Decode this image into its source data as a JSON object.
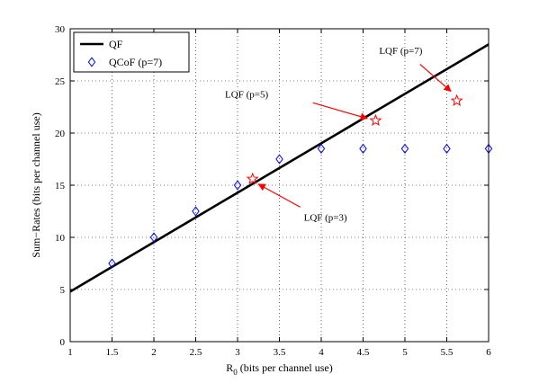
{
  "chart_data": {
    "type": "line",
    "title": "",
    "xlabel": "R",
    "xlabel_sub": "0",
    "xlabel_suffix": " (bits per channel use)",
    "ylabel": "Sum−Rates (bits per channel use)",
    "xlim": [
      1,
      6
    ],
    "ylim": [
      0,
      30
    ],
    "xticks": [
      1,
      1.5,
      2,
      2.5,
      3,
      3.5,
      4,
      4.5,
      5,
      5.5,
      6
    ],
    "xtick_labels": [
      "1",
      "1.5",
      "2",
      "2.5",
      "3",
      "3.5",
      "4",
      "4.5",
      "5",
      "5.5",
      "6"
    ],
    "yticks": [
      0,
      5,
      10,
      15,
      20,
      25,
      30
    ],
    "ytick_labels": [
      "0",
      "5",
      "10",
      "15",
      "20",
      "25",
      "30"
    ],
    "grid": true,
    "legend_position": "top-left",
    "series": [
      {
        "name": "QF",
        "style": "line",
        "color": "#000000",
        "x": [
          1,
          6
        ],
        "y": [
          4.8,
          28.5
        ]
      },
      {
        "name": "QCoF (p=7)",
        "style": "diamond-markers",
        "color": "#0000ff",
        "x": [
          1.5,
          2,
          2.5,
          3,
          3.5,
          4,
          4.5,
          5,
          5.5,
          6
        ],
        "y": [
          7.5,
          10,
          12.5,
          15,
          17.5,
          18.5,
          18.5,
          18.5,
          18.5,
          18.5
        ]
      }
    ],
    "stars": {
      "color": "#ff0000",
      "points": [
        {
          "x": 3.18,
          "y": 15.6
        },
        {
          "x": 4.65,
          "y": 21.2
        },
        {
          "x": 5.62,
          "y": 23.1
        }
      ]
    },
    "annotations": [
      {
        "text": "LQF (p=3)",
        "x": 4.05,
        "y": 11.6,
        "anchor": "middle",
        "arrow_from": [
          3.75,
          12.9
        ],
        "arrow_to": [
          3.25,
          15.1
        ]
      },
      {
        "text": "LQF (p=5)",
        "x": 2.85,
        "y": 23.4,
        "anchor": "start",
        "arrow_from": [
          3.9,
          22.9
        ],
        "arrow_to": [
          4.55,
          21.4
        ]
      },
      {
        "text": "LQF (p=7)",
        "x": 4.95,
        "y": 27.6,
        "anchor": "middle",
        "arrow_from": [
          5.18,
          26.6
        ],
        "arrow_to": [
          5.55,
          24.0
        ]
      }
    ]
  }
}
